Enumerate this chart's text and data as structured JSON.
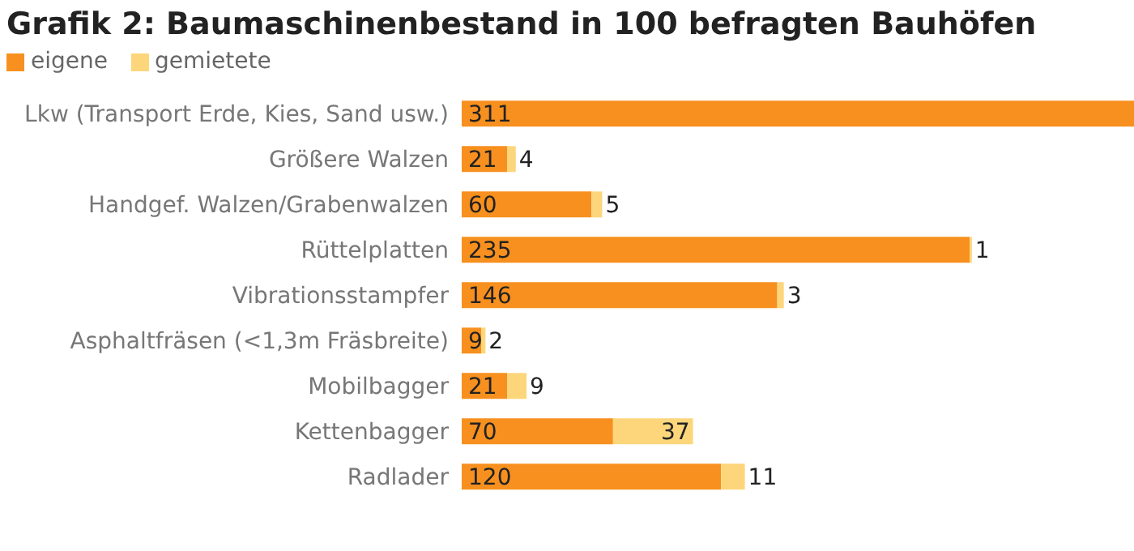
{
  "chart_data": {
    "type": "bar",
    "orientation": "horizontal",
    "stacked": true,
    "title": "Grafik 2: Baumaschinenbestand in 100 befragten Bauhöfen",
    "categories": [
      "Lkw (Transport Erde, Kies, Sand usw.)",
      "Größere Walzen",
      "Handgef. Walzen/Grabenwalzen",
      "Rüttelplatten",
      "Vibrationsstampfer",
      "Asphaltfräsen (<1,3m Fräsbreite)",
      "Mobilbagger",
      "Kettenbagger",
      "Radlader"
    ],
    "series": [
      {
        "name": "eigene",
        "color": "#f7901e",
        "values": [
          311,
          21,
          60,
          235,
          146,
          9,
          21,
          70,
          120
        ]
      },
      {
        "name": "gemietete",
        "color": "#fdd67c",
        "values": [
          null,
          4,
          5,
          1,
          3,
          2,
          9,
          37,
          11
        ]
      }
    ],
    "data_labels": true,
    "legend": "top left",
    "tick_labels": "y"
  }
}
